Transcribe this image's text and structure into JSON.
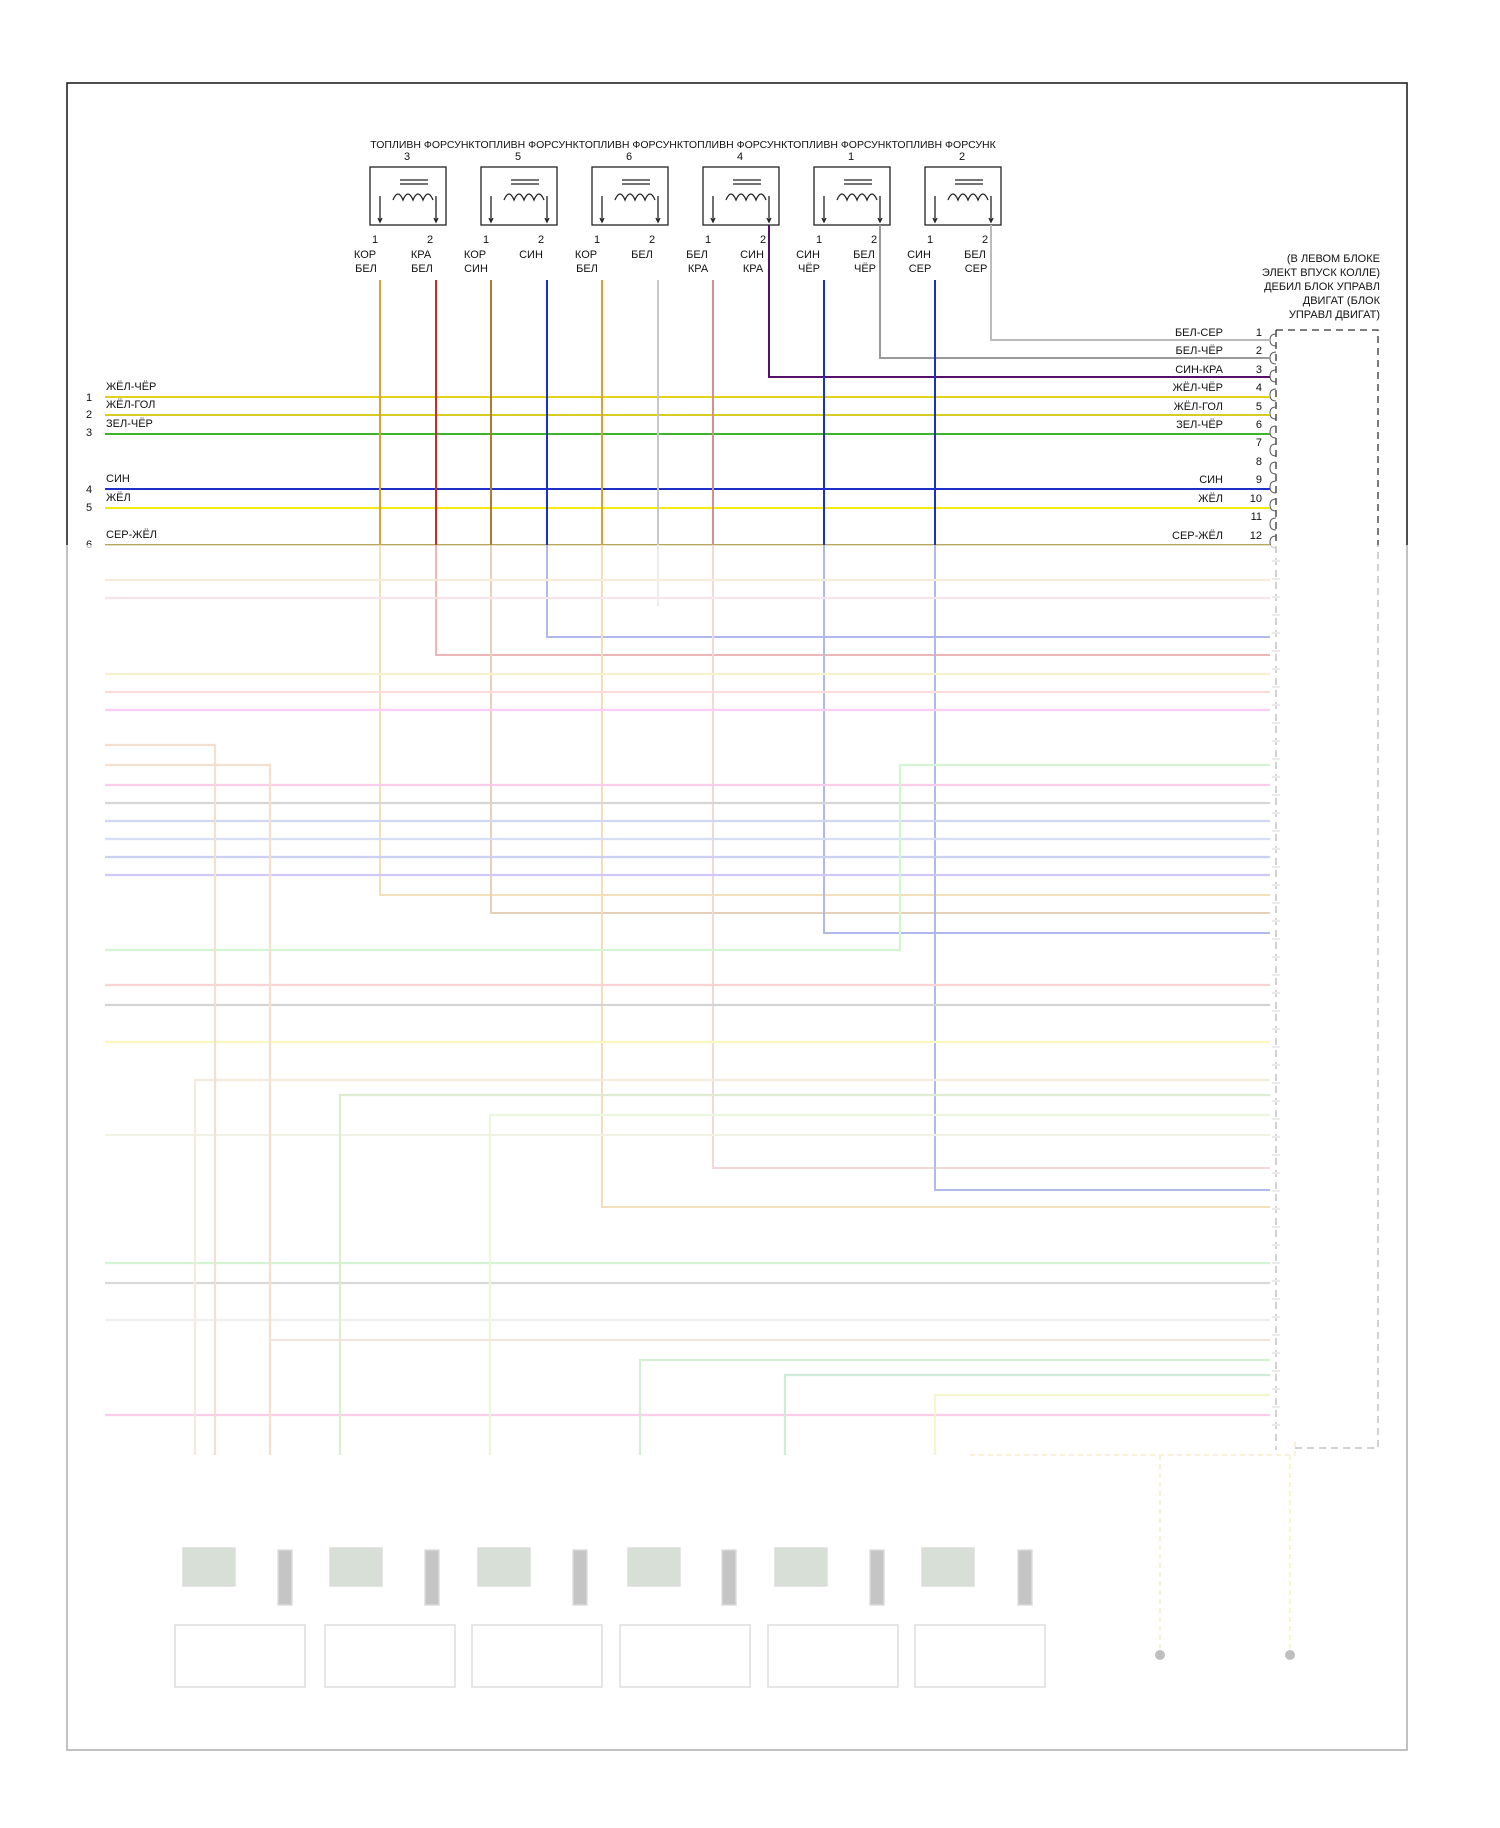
{
  "title": "ТОПЛИВН ФОРСУНКТОПЛИВН ФОРСУНКТОПЛИВН ФОРСУНКТОПЛИВН ФОРСУНКТОПЛИВН ФОРСУНКТОПЛИВН ФОРСУНК",
  "ecu_label": [
    "(В ЛЕВОМ БЛОКЕ",
    "ЭЛЕКТ ВПУСК КОЛЛЕ)",
    "ДЕБИЛ БЛОК УПРАВЛ",
    "ДВИГАТ (БЛОК",
    "УПРАВЛ ДВИГАТ)"
  ],
  "injectors": [
    {
      "num": "3",
      "pins": [
        "1",
        "2"
      ],
      "wires": [
        [
          "КОР",
          "БЕЛ"
        ],
        [
          "КРА",
          "БЕЛ"
        ]
      ]
    },
    {
      "num": "5",
      "pins": [
        "1",
        "2"
      ],
      "wires": [
        [
          "КОР",
          "СИН"
        ],
        [
          "СИН",
          ""
        ]
      ]
    },
    {
      "num": "6",
      "pins": [
        "1",
        "2"
      ],
      "wires": [
        [
          "КОР",
          "БЕЛ"
        ],
        [
          "БЕЛ",
          ""
        ]
      ]
    },
    {
      "num": "4",
      "pins": [
        "1",
        "2"
      ],
      "wires": [
        [
          "БЕЛ",
          "КРА"
        ],
        [
          "СИН",
          "КРА"
        ]
      ]
    },
    {
      "num": "1",
      "pins": [
        "1",
        "2"
      ],
      "wires": [
        [
          "СИН",
          "ЧЁР"
        ],
        [
          "БЕЛ",
          "ЧЁР"
        ]
      ]
    },
    {
      "num": "2",
      "pins": [
        "1",
        "2"
      ],
      "wires": [
        [
          "СИН",
          "СЕР"
        ],
        [
          "БЕЛ",
          "СЕР"
        ]
      ]
    }
  ],
  "ecu_pins": [
    {
      "num": "1",
      "label": "БЕЛ-СЕР"
    },
    {
      "num": "2",
      "label": "БЕЛ-ЧЁР"
    },
    {
      "num": "3",
      "label": "СИН-КРА"
    },
    {
      "num": "4",
      "label": "ЖЁЛ-ЧЁР"
    },
    {
      "num": "5",
      "label": "ЖЁЛ-ГОЛ"
    },
    {
      "num": "6",
      "label": "ЗЕЛ-ЧЁР"
    },
    {
      "num": "7",
      "label": ""
    },
    {
      "num": "8",
      "label": ""
    },
    {
      "num": "9",
      "label": "СИН"
    },
    {
      "num": "10",
      "label": "ЖЁЛ"
    },
    {
      "num": "11",
      "label": ""
    },
    {
      "num": "12",
      "label": "СЕР-ЖЁЛ"
    }
  ],
  "left_wires": [
    {
      "num": "1",
      "label": "ЖЁЛ-ЧЁР"
    },
    {
      "num": "2",
      "label": "ЖЁЛ-ГОЛ"
    },
    {
      "num": "3",
      "label": "ЗЕЛ-ЧЁР"
    },
    {
      "num": "4",
      "label": "СИН"
    },
    {
      "num": "5",
      "label": "ЖЁЛ"
    },
    {
      "num": "6",
      "label": "СЕР-ЖЁЛ"
    }
  ],
  "colors": {
    "yellow": "#e2d21a",
    "yellow_bright": "#f2ea10",
    "orange": "#d8a23a",
    "green": "#3bb52a",
    "blue": "#1c2fc8",
    "red": "#cc2a2a",
    "purple": "#55106a",
    "gray": "#b8b8b8",
    "pink": "#f09a9a",
    "border": "#222222"
  }
}
